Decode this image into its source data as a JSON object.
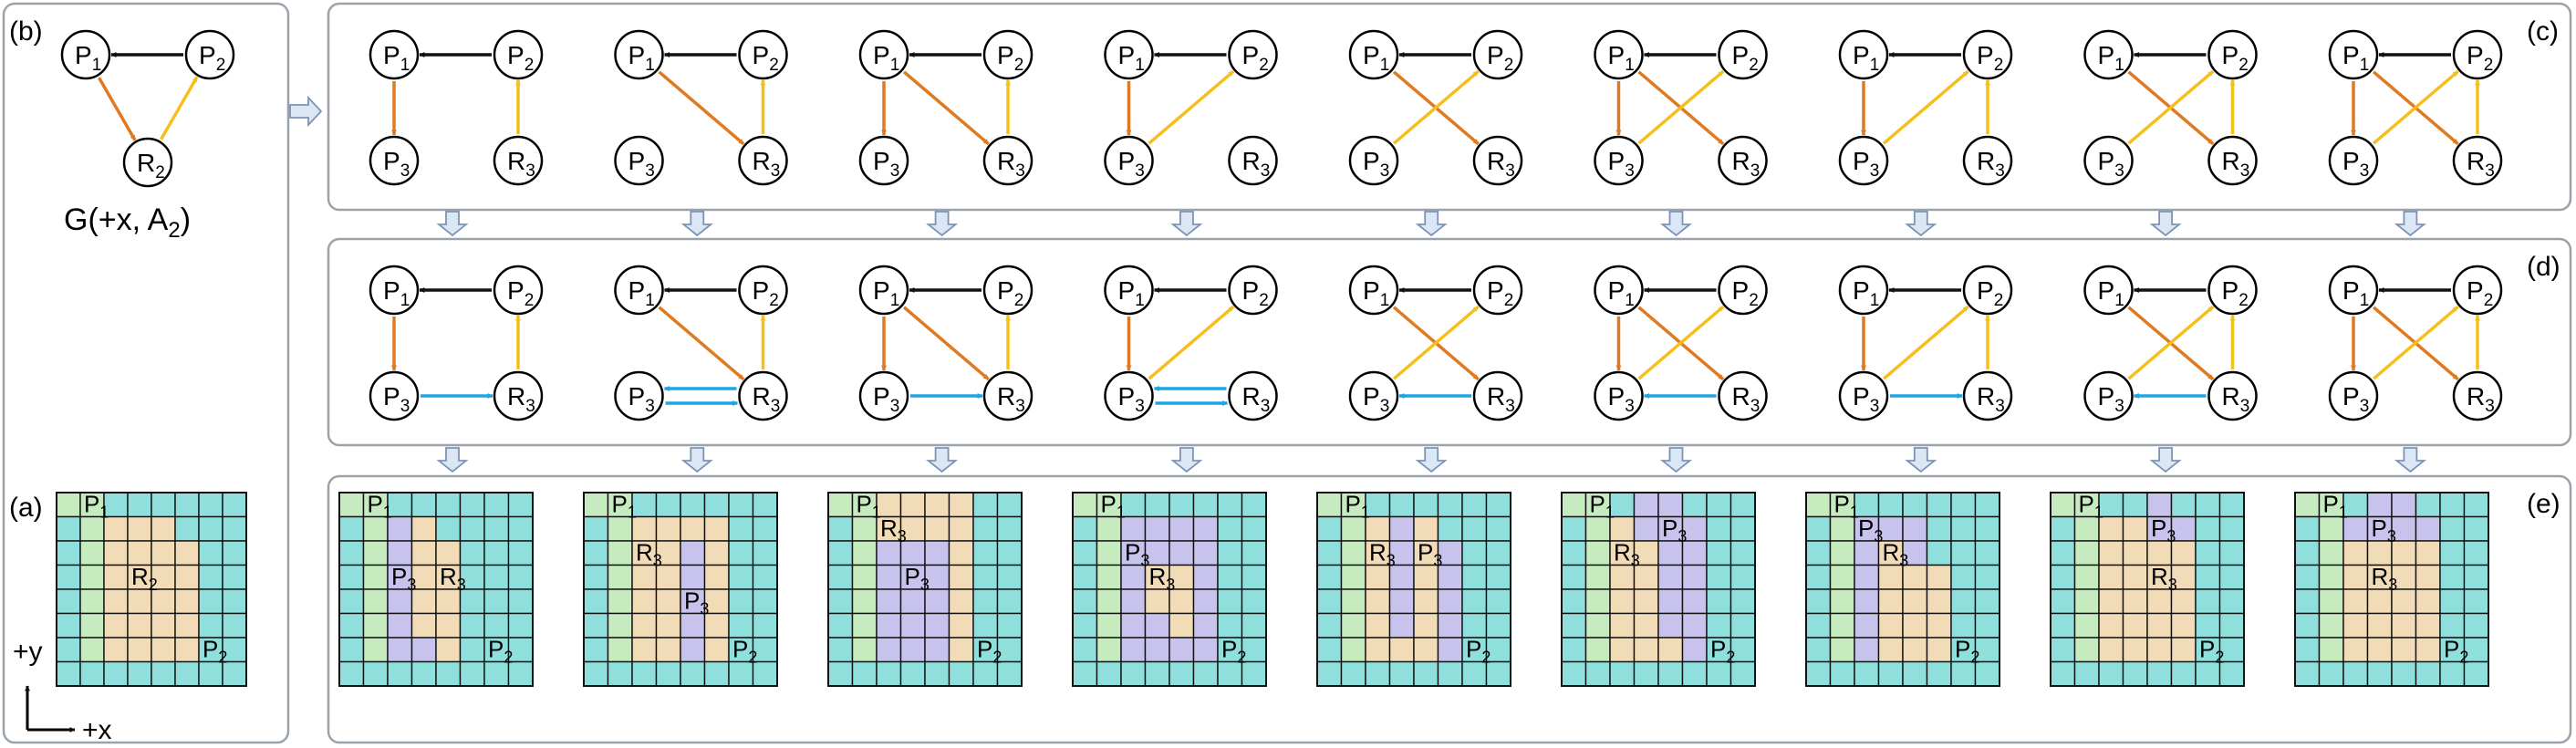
{
  "labels": {
    "a": "(a)",
    "b": "(b)",
    "c": "(c)",
    "d": "(d)",
    "e": "(e)"
  },
  "caption_b": "G(+x, A",
  "caption_b_sub": "2",
  "caption_b_end": ")",
  "axes": {
    "x": "+x",
    "y": "+y"
  },
  "colors": {
    "orange": "#e07a21",
    "yellow": "#f5c01e",
    "black": "#111111",
    "blue": "#1ea5e3",
    "green": "#c5ebbe",
    "teal": "#8fe0dd",
    "tan": "#f2dcb8",
    "purple": "#c8c3ec",
    "panel_border": "#9aa2aa",
    "arrow_fill": "#dce7f5",
    "arrow_stroke": "#7d93b6"
  },
  "node_names": {
    "P1": [
      "P",
      "1"
    ],
    "P2": [
      "P",
      "2"
    ],
    "P3": [
      "P",
      "3"
    ],
    "R2": [
      "R",
      "2"
    ],
    "R3": [
      "R",
      "3"
    ]
  },
  "base_graph": {
    "nodes": [
      "P1",
      "P2",
      "R2"
    ],
    "edges": [
      {
        "from": "P2",
        "to": "P1",
        "color": "black"
      },
      {
        "from": "P1",
        "to": "R2",
        "color": "orange"
      },
      {
        "from": "R2",
        "to": "P2",
        "color": "yellow"
      }
    ]
  },
  "graphs_c": [
    [
      [
        "P2",
        "P1",
        "black"
      ],
      [
        "P1",
        "P3",
        "orange"
      ],
      [
        "R3",
        "P2",
        "yellow"
      ]
    ],
    [
      [
        "P2",
        "P1",
        "black"
      ],
      [
        "P1",
        "R3",
        "orange"
      ],
      [
        "R3",
        "P2",
        "yellow"
      ]
    ],
    [
      [
        "P2",
        "P1",
        "black"
      ],
      [
        "P1",
        "P3",
        "orange"
      ],
      [
        "P1",
        "R3",
        "orange"
      ],
      [
        "R3",
        "P2",
        "yellow"
      ]
    ],
    [
      [
        "P2",
        "P1",
        "black"
      ],
      [
        "P1",
        "P3",
        "orange"
      ],
      [
        "P3",
        "P2",
        "yellow"
      ]
    ],
    [
      [
        "P2",
        "P1",
        "black"
      ],
      [
        "P1",
        "R3",
        "orange"
      ],
      [
        "P3",
        "P2",
        "yellow"
      ]
    ],
    [
      [
        "P2",
        "P1",
        "black"
      ],
      [
        "P1",
        "P3",
        "orange"
      ],
      [
        "P1",
        "R3",
        "orange"
      ],
      [
        "P3",
        "P2",
        "yellow"
      ]
    ],
    [
      [
        "P2",
        "P1",
        "black"
      ],
      [
        "P1",
        "P3",
        "orange"
      ],
      [
        "P3",
        "P2",
        "yellow"
      ],
      [
        "R3",
        "P2",
        "yellow"
      ]
    ],
    [
      [
        "P2",
        "P1",
        "black"
      ],
      [
        "P1",
        "R3",
        "orange"
      ],
      [
        "P3",
        "P2",
        "yellow"
      ],
      [
        "R3",
        "P2",
        "yellow"
      ]
    ],
    [
      [
        "P2",
        "P1",
        "black"
      ],
      [
        "P1",
        "P3",
        "orange"
      ],
      [
        "P1",
        "R3",
        "orange"
      ],
      [
        "P3",
        "P2",
        "yellow"
      ],
      [
        "R3",
        "P2",
        "yellow"
      ]
    ]
  ],
  "graphs_d_blue": [
    [
      [
        "P3",
        "R3"
      ]
    ],
    [
      [
        "R3",
        "P3"
      ],
      [
        "P3",
        "R3"
      ]
    ],
    [
      [
        "P3",
        "R3"
      ]
    ],
    [
      [
        "R3",
        "P3"
      ],
      [
        "P3",
        "R3"
      ]
    ],
    [
      [
        "R3",
        "P3"
      ]
    ],
    [
      [
        "R3",
        "P3"
      ]
    ],
    [
      [
        "P3",
        "R3"
      ]
    ],
    [
      [
        "R3",
        "P3"
      ]
    ],
    []
  ],
  "grid_a": {
    "cells": [
      "GGTTTTTT",
      "TGNNNTTT",
      "TGNNNNTT",
      "TGNNNNTT",
      "TGNNNNTT",
      "TGNNNNTT",
      "TGNNNNTT",
      "TTTTTTTT"
    ],
    "labels": [
      {
        "r": 0,
        "c": 1,
        "t": [
          "P",
          "1"
        ]
      },
      {
        "r": 3,
        "c": 3,
        "t": [
          "R",
          "2"
        ]
      },
      {
        "r": 6,
        "c": 6,
        "t": [
          "P",
          "2"
        ]
      }
    ]
  },
  "grids_e": [
    {
      "cells": [
        "GGTTTTTT",
        "TGUNTTTT",
        "TGUNNTTT",
        "TGUNNTTT",
        "TGUNNTTT",
        "TGUNNTTT",
        "TGUUNTTT",
        "TTTTTTTT"
      ],
      "labels": [
        {
          "r": 0,
          "c": 1,
          "t": [
            "P",
            "1"
          ]
        },
        {
          "r": 3,
          "c": 2,
          "t": [
            "P",
            "3"
          ]
        },
        {
          "r": 3,
          "c": 4,
          "t": [
            "R",
            "3"
          ]
        },
        {
          "r": 6,
          "c": 6,
          "t": [
            "P",
            "2"
          ]
        }
      ]
    },
    {
      "cells": [
        "GGTTTTTT",
        "TGNNNNTT",
        "TGNNUNTT",
        "TGNNUNTT",
        "TGNNUNTT",
        "TGNNUNTT",
        "TGNNUNTT",
        "TTTTTTTT"
      ],
      "labels": [
        {
          "r": 0,
          "c": 1,
          "t": [
            "P",
            "1"
          ]
        },
        {
          "r": 2,
          "c": 2,
          "t": [
            "R",
            "3"
          ]
        },
        {
          "r": 4,
          "c": 4,
          "t": [
            "P",
            "3"
          ]
        },
        {
          "r": 6,
          "c": 6,
          "t": [
            "P",
            "2"
          ]
        }
      ]
    },
    {
      "cells": [
        "GGNNNNTT",
        "TGNNNNTT",
        "TGUUUNTT",
        "TGUUUNTT",
        "TGUUUNTT",
        "TGUUUNTT",
        "TGUUUNTT",
        "TTTTTTTT"
      ],
      "labels": [
        {
          "r": 0,
          "c": 1,
          "t": [
            "P",
            "1"
          ]
        },
        {
          "r": 1,
          "c": 2,
          "t": [
            "R",
            "3"
          ]
        },
        {
          "r": 3,
          "c": 3,
          "t": [
            "P",
            "3"
          ]
        },
        {
          "r": 6,
          "c": 6,
          "t": [
            "P",
            "2"
          ]
        }
      ]
    },
    {
      "cells": [
        "GGTTTTTT",
        "TGUUUUTT",
        "TGUUUUTT",
        "TGUNNUTT",
        "TGUNNUTT",
        "TGUUNUTT",
        "TGUUUUTT",
        "TTTTTTTT"
      ],
      "labels": [
        {
          "r": 0,
          "c": 1,
          "t": [
            "P",
            "1"
          ]
        },
        {
          "r": 2,
          "c": 2,
          "t": [
            "P",
            "3"
          ]
        },
        {
          "r": 3,
          "c": 3,
          "t": [
            "R",
            "3"
          ]
        },
        {
          "r": 6,
          "c": 6,
          "t": [
            "P",
            "2"
          ]
        }
      ]
    },
    {
      "cells": [
        "GGTTTTTT",
        "TGNUNTTT",
        "TGNUNUTT",
        "TGNUNUTT",
        "TGNUNUTT",
        "TGNUNUTT",
        "TGNNNUTT",
        "TTTTTTTT"
      ],
      "labels": [
        {
          "r": 0,
          "c": 1,
          "t": [
            "P",
            "1"
          ]
        },
        {
          "r": 2,
          "c": 2,
          "t": [
            "R",
            "3"
          ]
        },
        {
          "r": 2,
          "c": 4,
          "t": [
            "P",
            "3"
          ]
        },
        {
          "r": 6,
          "c": 6,
          "t": [
            "P",
            "2"
          ]
        }
      ]
    },
    {
      "cells": [
        "GGTUUTTT",
        "TGNUUUTT",
        "TGNNUUTT",
        "TGNNUUTT",
        "TGNNUUTT",
        "TGNNUUTT",
        "TGNNNUTT",
        "TTTTTTTT"
      ],
      "labels": [
        {
          "r": 0,
          "c": 1,
          "t": [
            "P",
            "1"
          ]
        },
        {
          "r": 1,
          "c": 4,
          "t": [
            "P",
            "3"
          ]
        },
        {
          "r": 2,
          "c": 2,
          "t": [
            "R",
            "3"
          ]
        },
        {
          "r": 6,
          "c": 6,
          "t": [
            "P",
            "2"
          ]
        }
      ]
    },
    {
      "cells": [
        "GGTTTTTT",
        "TGUUUTTT",
        "TGUNUTTT",
        "TGUNNNTT",
        "TGUNNNTT",
        "TGUNNNTT",
        "TGUNNNTT",
        "TTTTTTTT"
      ],
      "labels": [
        {
          "r": 0,
          "c": 1,
          "t": [
            "P",
            "1"
          ]
        },
        {
          "r": 1,
          "c": 2,
          "t": [
            "P",
            "3"
          ]
        },
        {
          "r": 2,
          "c": 3,
          "t": [
            "R",
            "3"
          ]
        },
        {
          "r": 6,
          "c": 6,
          "t": [
            "P",
            "2"
          ]
        }
      ]
    },
    {
      "cells": [
        "GGTTUTTT",
        "TGNNUUTT",
        "TGNNNNTT",
        "TGNNNNTT",
        "TGNNNNTT",
        "TGNNNNTT",
        "TGNNNNTT",
        "TTTTTTTT"
      ],
      "labels": [
        {
          "r": 0,
          "c": 1,
          "t": [
            "P",
            "1"
          ]
        },
        {
          "r": 1,
          "c": 4,
          "t": [
            "P",
            "3"
          ]
        },
        {
          "r": 3,
          "c": 4,
          "t": [
            "R",
            "3"
          ]
        },
        {
          "r": 6,
          "c": 6,
          "t": [
            "P",
            "2"
          ]
        }
      ]
    },
    {
      "cells": [
        "GGTUUTTT",
        "TGUUUUTT",
        "TGNNNNTT",
        "TGNNNNTT",
        "TGNNNNTT",
        "TGNNNNTT",
        "TGNNNNTT",
        "TTTTTTTT"
      ],
      "labels": [
        {
          "r": 0,
          "c": 1,
          "t": [
            "P",
            "1"
          ]
        },
        {
          "r": 1,
          "c": 3,
          "t": [
            "P",
            "3"
          ]
        },
        {
          "r": 3,
          "c": 3,
          "t": [
            "R",
            "3"
          ]
        },
        {
          "r": 6,
          "c": 6,
          "t": [
            "P",
            "2"
          ]
        }
      ]
    }
  ]
}
